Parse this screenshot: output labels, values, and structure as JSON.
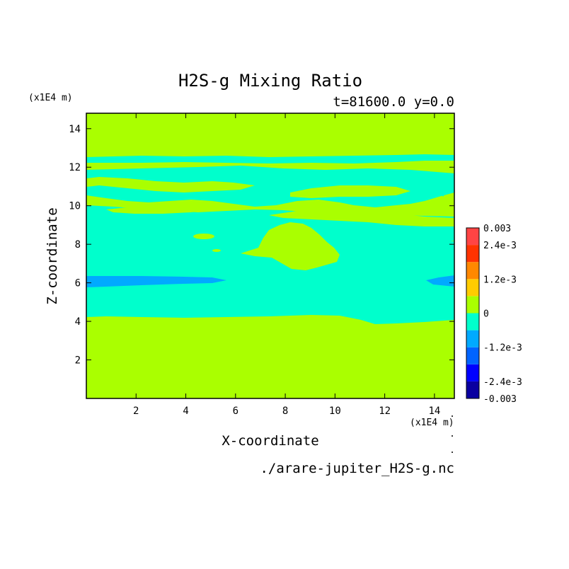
{
  "chart_data": {
    "type": "heatmap",
    "title": "H2S-g Mixing Ratio",
    "subtitle": "t=81600.0 y=0.0",
    "xlabel": "X-coordinate",
    "ylabel": "Z-coordinate",
    "x_unit": "(x1E4 m)",
    "z_unit": "(x1E4 m)",
    "xlim": [
      0,
      14.8
    ],
    "ylim": [
      0,
      14.8
    ],
    "x_ticks": [
      2,
      4,
      6,
      8,
      10,
      12,
      14
    ],
    "y_ticks": [
      2,
      4,
      6,
      8,
      10,
      12,
      14
    ],
    "filename": "./arare-jupiter_H2S-g.nc",
    "colorbar": {
      "levels": [
        -0.003,
        -0.0024,
        -0.0018,
        -0.0012,
        -0.0006,
        0,
        0.0006,
        0.0012,
        0.0018,
        0.0024,
        0.003
      ],
      "colors": [
        "#0a00a0",
        "#0000ff",
        "#0064ff",
        "#00aaff",
        "#00ffcc",
        "#aaff00",
        "#ffcc00",
        "#ff8800",
        "#ff3300",
        "#ff4444"
      ],
      "labels": [
        {
          "value": 0.003,
          "text": "0.003"
        },
        {
          "value": 0.0024,
          "text": "2.4e-3"
        },
        {
          "value": 0.0012,
          "text": "1.2e-3"
        },
        {
          "value": 0,
          "text": "0"
        },
        {
          "value": -0.0012,
          "text": "-1.2e-3"
        },
        {
          "value": -0.0024,
          "text": "-2.4e-3"
        },
        {
          "value": -0.003,
          "text": "-0.003"
        }
      ]
    },
    "regions": [
      {
        "name": "background",
        "class": "0 to 6e-4",
        "color": "#aaff00"
      },
      {
        "name": "cyan-layer",
        "class": "-6e-4 to 0",
        "color": "#00ffcc",
        "z_range": [
          4,
          12.7
        ]
      },
      {
        "name": "blue-band",
        "class": "-1.2e-3 to -6e-4",
        "color": "#00aaff",
        "z_range": [
          5.9,
          6.5
        ]
      }
    ]
  }
}
